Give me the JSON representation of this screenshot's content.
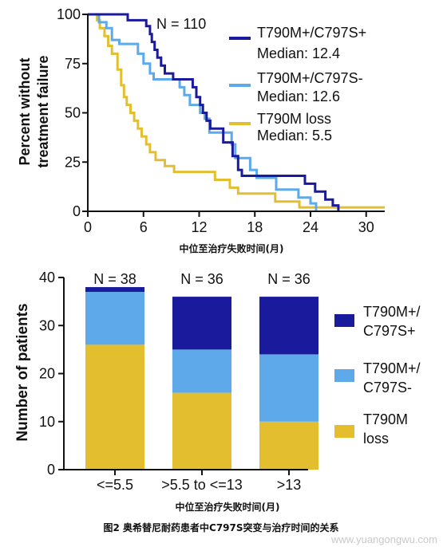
{
  "colors": {
    "dark_blue": "#1a1a9c",
    "light_blue": "#5ea9ea",
    "gold": "#e3be2e",
    "axis": "#111111"
  },
  "chart_data": [
    {
      "type": "line",
      "subtype": "kaplan-meier step",
      "annotation": "N = 110",
      "xlabel": "中位至治疗失败时间(月)",
      "ylabel": "Percent without treatment failure",
      "ylabel_lines": [
        "Percent without",
        "treatment failure"
      ],
      "xlim": [
        0,
        32
      ],
      "ylim": [
        0,
        100
      ],
      "xticks": [
        0,
        6,
        12,
        18,
        24,
        30
      ],
      "yticks": [
        0,
        25,
        50,
        75,
        100
      ],
      "legend": {
        "placement": "right"
      },
      "series": [
        {
          "name": "T790M+/C797S+",
          "median_label": "Median: 12.4",
          "color": "#1a1a9c",
          "points": [
            [
              0,
              100
            ],
            [
              4.3,
              100
            ],
            [
              4.3,
              97
            ],
            [
              6.3,
              97
            ],
            [
              6.3,
              94
            ],
            [
              6.7,
              94
            ],
            [
              6.7,
              90
            ],
            [
              6.9,
              90
            ],
            [
              6.9,
              86
            ],
            [
              7.2,
              86
            ],
            [
              7.2,
              82
            ],
            [
              7.5,
              82
            ],
            [
              7.5,
              78
            ],
            [
              7.9,
              78
            ],
            [
              7.9,
              74
            ],
            [
              8.3,
              74
            ],
            [
              8.3,
              70
            ],
            [
              9.2,
              70
            ],
            [
              9.2,
              67
            ],
            [
              11.3,
              67
            ],
            [
              11.3,
              63
            ],
            [
              11.7,
              63
            ],
            [
              11.7,
              58
            ],
            [
              12.1,
              58
            ],
            [
              12.1,
              54
            ],
            [
              12.4,
              54
            ],
            [
              12.4,
              50
            ],
            [
              12.8,
              50
            ],
            [
              12.8,
              46
            ],
            [
              13.2,
              46
            ],
            [
              13.2,
              42
            ],
            [
              14.6,
              42
            ],
            [
              14.6,
              35
            ],
            [
              15.6,
              35
            ],
            [
              15.6,
              28
            ],
            [
              16.2,
              28
            ],
            [
              16.2,
              21
            ],
            [
              16.6,
              21
            ],
            [
              16.6,
              18
            ],
            [
              23.4,
              18
            ],
            [
              23.4,
              14
            ],
            [
              24.5,
              14
            ],
            [
              24.5,
              10
            ],
            [
              25.6,
              10
            ],
            [
              25.6,
              6
            ],
            [
              26.4,
              6
            ],
            [
              26.4,
              3
            ],
            [
              27,
              3
            ],
            [
              27,
              0
            ]
          ]
        },
        {
          "name": "T790M+/C797S-",
          "median_label": "Median: 12.6",
          "color": "#5ea9ea",
          "points": [
            [
              0,
              100
            ],
            [
              1.2,
              100
            ],
            [
              1.2,
              96
            ],
            [
              2,
              96
            ],
            [
              2,
              93
            ],
            [
              2.6,
              93
            ],
            [
              2.6,
              87
            ],
            [
              3.4,
              87
            ],
            [
              3.4,
              85
            ],
            [
              5.4,
              85
            ],
            [
              5.4,
              80
            ],
            [
              6,
              80
            ],
            [
              6,
              75
            ],
            [
              6.7,
              75
            ],
            [
              6.7,
              70
            ],
            [
              7.1,
              70
            ],
            [
              7.1,
              67
            ],
            [
              9.9,
              67
            ],
            [
              9.9,
              63
            ],
            [
              10.4,
              63
            ],
            [
              10.4,
              59
            ],
            [
              11,
              59
            ],
            [
              11,
              54
            ],
            [
              12.1,
              54
            ],
            [
              12.1,
              50
            ],
            [
              12.6,
              50
            ],
            [
              12.6,
              47
            ],
            [
              13.1,
              47
            ],
            [
              13.1,
              40
            ],
            [
              15.5,
              40
            ],
            [
              15.5,
              34
            ],
            [
              15.9,
              34
            ],
            [
              15.9,
              27
            ],
            [
              17.5,
              27
            ],
            [
              17.5,
              21
            ],
            [
              18.2,
              21
            ],
            [
              18.2,
              17
            ],
            [
              20.3,
              17
            ],
            [
              20.3,
              11
            ],
            [
              22.7,
              11
            ],
            [
              22.7,
              7
            ],
            [
              24,
              7
            ],
            [
              24,
              4
            ],
            [
              24.6,
              4
            ],
            [
              24.6,
              0
            ]
          ]
        },
        {
          "name": "T790M loss",
          "median_label": "Median: 5.5",
          "color": "#e3be2e",
          "points": [
            [
              0,
              100
            ],
            [
              1,
              100
            ],
            [
              1,
              97
            ],
            [
              1.3,
              97
            ],
            [
              1.3,
              93
            ],
            [
              1.8,
              93
            ],
            [
              1.8,
              89
            ],
            [
              2.2,
              89
            ],
            [
              2.2,
              84
            ],
            [
              2.6,
              84
            ],
            [
              2.6,
              80
            ],
            [
              3.2,
              80
            ],
            [
              3.2,
              72
            ],
            [
              3.6,
              72
            ],
            [
              3.6,
              64
            ],
            [
              3.9,
              64
            ],
            [
              3.9,
              58
            ],
            [
              4.2,
              58
            ],
            [
              4.2,
              54
            ],
            [
              4.6,
              54
            ],
            [
              4.6,
              50
            ],
            [
              5,
              50
            ],
            [
              5,
              46
            ],
            [
              5.4,
              46
            ],
            [
              5.4,
              42
            ],
            [
              5.8,
              42
            ],
            [
              5.8,
              38
            ],
            [
              6.3,
              38
            ],
            [
              6.3,
              34
            ],
            [
              6.7,
              34
            ],
            [
              6.7,
              30
            ],
            [
              7.3,
              30
            ],
            [
              7.3,
              26
            ],
            [
              8.3,
              26
            ],
            [
              8.3,
              23
            ],
            [
              9.3,
              23
            ],
            [
              9.3,
              20
            ],
            [
              13.7,
              20
            ],
            [
              13.7,
              16
            ],
            [
              15.3,
              16
            ],
            [
              15.3,
              12
            ],
            [
              16.2,
              12
            ],
            [
              16.2,
              9
            ],
            [
              20.2,
              9
            ],
            [
              20.2,
              5
            ],
            [
              22.8,
              5
            ],
            [
              22.8,
              2
            ],
            [
              32,
              2
            ]
          ]
        }
      ]
    },
    {
      "type": "bar",
      "subtype": "stacked",
      "xlabel": "中位至治疗失败时间(月)",
      "ylabel": "Number of patients",
      "ylim": [
        0,
        40
      ],
      "yticks": [
        0,
        10,
        20,
        30,
        40
      ],
      "categories": [
        "<=5.5",
        ">5.5 to <=13",
        ">13"
      ],
      "annotations": [
        "N = 38",
        "N = 36",
        "N = 36"
      ],
      "legend": {
        "placement": "right"
      },
      "series": [
        {
          "name": "T790M loss",
          "label_lines": [
            "T790M",
            "loss"
          ],
          "color": "#e3be2e",
          "values": [
            26,
            16,
            10
          ]
        },
        {
          "name": "T790M+/C797S-",
          "label_lines": [
            "T790M+/",
            "C797S-"
          ],
          "color": "#5ea9ea",
          "values": [
            11,
            9,
            14
          ]
        },
        {
          "name": "T790M+/C797S+",
          "label_lines": [
            "T790M+/",
            "C797S+"
          ],
          "color": "#1a1a9c",
          "values": [
            1,
            11,
            12
          ]
        }
      ]
    }
  ],
  "caption": "图2  奥希替尼耐药患者中C797S突变与治疗时间的关系",
  "watermark": "www.yuangongwu.com"
}
